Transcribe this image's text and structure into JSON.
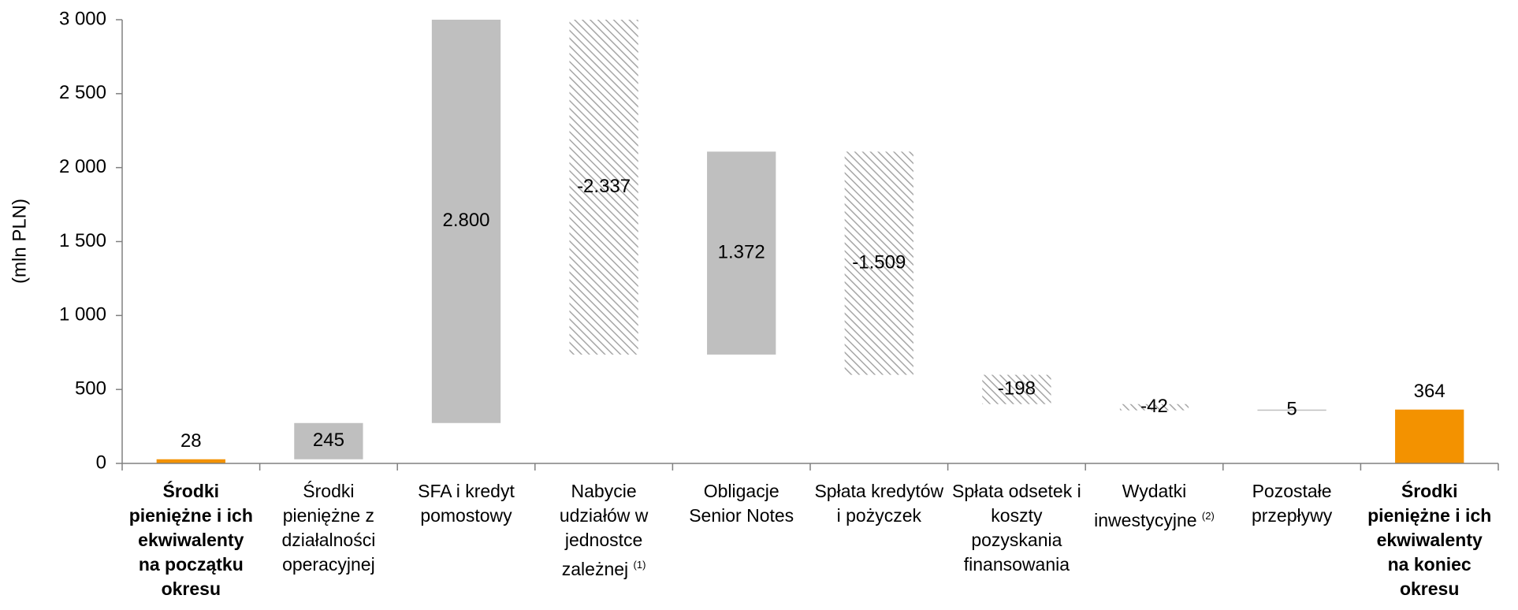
{
  "chart_data": {
    "type": "waterfall",
    "y_label": "(mln PLN)",
    "categories": [
      "Środki pieniężne i ich ekwiwalenty na początku okresu",
      "Środki pieniężne z działalności operacyjnej",
      "SFA i kredyt pomostowy",
      "Nabycie udziałów w jednostce zależnej",
      "Obligacje Senior Notes",
      "Spłata kredytów i pożyczek",
      "Spłata odsetek i koszty pozyskania finansowania",
      "Wydatki inwestycyjne",
      "Pozostałe przepływy",
      "Środki pieniężne i ich ekwiwalenty na koniec okresu"
    ],
    "category_notes": [
      null,
      null,
      null,
      "(1)",
      null,
      null,
      null,
      "(2)",
      null,
      null
    ],
    "measures": [
      "absolute",
      "relative",
      "relative",
      "relative",
      "relative",
      "relative",
      "relative",
      "relative",
      "relative",
      "absolute"
    ],
    "values": [
      28,
      245,
      2800,
      -2337,
      1372,
      -1509,
      -198,
      -42,
      5,
      364
    ],
    "value_labels": [
      "28",
      "245",
      "2.800",
      "-2.337",
      "1.372",
      "-1.509",
      "-198",
      "-42",
      "5",
      "364"
    ],
    "colors": {
      "absolute": "#f39200",
      "increase": "#bfbfbf",
      "decrease": "#a6a6a6"
    },
    "ylim": [
      0,
      3000
    ],
    "yticks": [
      0,
      500,
      {
        "value": 1000,
        "label": "1 000"
      },
      {
        "value": 1500,
        "label": "1 500"
      },
      {
        "value": 2000,
        "label": "2 000"
      },
      {
        "value": 2500,
        "label": "2 500"
      },
      {
        "value": 3000,
        "label": "3 000"
      }
    ]
  }
}
